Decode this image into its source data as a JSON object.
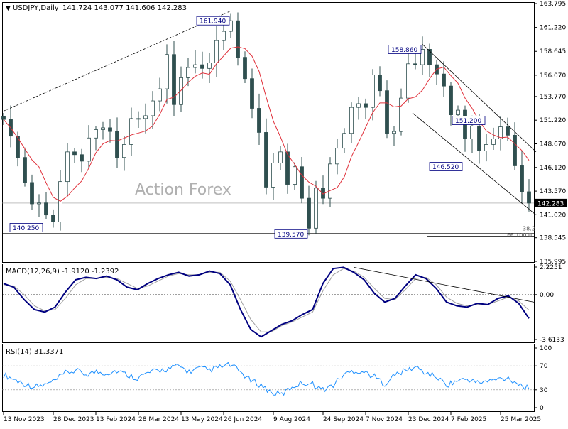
{
  "header": {
    "symbol_timeframe": "USDJPY,Daily",
    "ohlc": "141.724 143.077 141.606 142.283"
  },
  "watermark": "Action Forex",
  "colors": {
    "candle": "#2f4f4f",
    "sma": "#e0303a",
    "trendline": "#000000",
    "macd": "#000080",
    "signal": "#a0a0a0",
    "rsi": "#1e90ff",
    "last_price_bg": "#000000",
    "last_price_text": "#ffffff"
  },
  "chart_data": [
    {
      "type": "candlestick",
      "title": "USDJPY,Daily",
      "ylim": [
        135.995,
        163.795
      ],
      "y_ticks": [
        "163.795",
        "161.220",
        "158.645",
        "156.070",
        "153.770",
        "151.220",
        "148.670",
        "146.120",
        "143.570",
        "141.020",
        "138.545",
        "135.995"
      ],
      "last_price": "142.283",
      "x_ticks": [
        "13 Nov 2023",
        "28 Dec 2023",
        "13 Feb 2024",
        "28 Mar 2024",
        "13 May 2024",
        "26 Jun 2024",
        "9 Aug 2024",
        "24 Sep 2024",
        "7 Nov 2024",
        "23 Dec 2024",
        "7 Feb 2025",
        "25 Mar 2025"
      ],
      "series": [
        {
          "name": "Close",
          "points": [
            [
              "13 Nov 2023",
              151.3
            ],
            [
              "20 Nov 2023",
              149.5
            ],
            [
              "27 Nov 2023",
              147.2
            ],
            [
              "4 Dec 2023",
              144.5
            ],
            [
              "11 Dec 2023",
              142.2
            ],
            [
              "18 Dec 2023",
              142.3
            ],
            [
              "25 Dec 2023",
              141.0
            ],
            [
              "28 Dec 2023",
              140.25
            ],
            [
              "8 Jan 2024",
              144.6
            ],
            [
              "15 Jan 2024",
              147.8
            ],
            [
              "22 Jan 2024",
              147.5
            ],
            [
              "29 Jan 2024",
              146.8
            ],
            [
              "5 Feb 2024",
              149.3
            ],
            [
              "13 Feb 2024",
              150.2
            ],
            [
              "20 Feb 2024",
              150.4
            ],
            [
              "27 Feb 2024",
              150.0
            ],
            [
              "5 Mar 2024",
              147.2
            ],
            [
              "12 Mar 2024",
              148.6
            ],
            [
              "19 Mar 2024",
              151.4
            ],
            [
              "28 Mar 2024",
              151.4
            ],
            [
              "5 Apr 2024",
              151.7
            ],
            [
              "12 Apr 2024",
              153.3
            ],
            [
              "19 Apr 2024",
              154.6
            ],
            [
              "26 Apr 2024",
              158.3
            ],
            [
              "3 May 2024",
              152.9
            ],
            [
              "13 May 2024",
              155.8
            ],
            [
              "20 May 2024",
              156.9
            ],
            [
              "27 May 2024",
              157.2
            ],
            [
              "3 Jun 2024",
              156.8
            ],
            [
              "10 Jun 2024",
              157.4
            ],
            [
              "17 Jun 2024",
              159.8
            ],
            [
              "26 Jun 2024",
              160.8
            ],
            [
              "3 Jul 2024",
              161.94
            ],
            [
              "10 Jul 2024",
              158.0
            ],
            [
              "17 Jul 2024",
              155.7
            ],
            [
              "24 Jul 2024",
              152.5
            ],
            [
              "31 Jul 2024",
              149.9
            ],
            [
              "5 Aug 2024",
              144.0
            ],
            [
              "9 Aug 2024",
              146.6
            ],
            [
              "16 Aug 2024",
              147.8
            ],
            [
              "23 Aug 2024",
              144.3
            ],
            [
              "30 Aug 2024",
              146.2
            ],
            [
              "6 Sep 2024",
              142.8
            ],
            [
              "13 Sep 2024",
              139.57
            ],
            [
              "20 Sep 2024",
              143.9
            ],
            [
              "24 Sep 2024",
              142.8
            ],
            [
              "1 Oct 2024",
              146.5
            ],
            [
              "8 Oct 2024",
              148.2
            ],
            [
              "15 Oct 2024",
              149.8
            ],
            [
              "22 Oct 2024",
              152.6
            ],
            [
              "29 Oct 2024",
              153.0
            ],
            [
              "7 Nov 2024",
              152.6
            ],
            [
              "14 Nov 2024",
              156.1
            ],
            [
              "21 Nov 2024",
              154.4
            ],
            [
              "28 Nov 2024",
              149.8
            ],
            [
              "5 Dec 2024",
              150.0
            ],
            [
              "12 Dec 2024",
              153.6
            ],
            [
              "23 Dec 2024",
              157.3
            ],
            [
              "30 Dec 2024",
              157.2
            ],
            [
              "7 Jan 2025",
              158.86
            ],
            [
              "14 Jan 2025",
              157.2
            ],
            [
              "21 Jan 2025",
              156.2
            ],
            [
              "28 Jan 2025",
              154.9
            ],
            [
              "7 Feb 2025",
              151.8
            ],
            [
              "14 Feb 2025",
              152.3
            ],
            [
              "21 Feb 2025",
              149.2
            ],
            [
              "28 Feb 2025",
              150.6
            ],
            [
              "7 Mar 2025",
              147.9
            ],
            [
              "14 Mar 2025",
              148.6
            ],
            [
              "20 Mar 2025",
              149.2
            ],
            [
              "25 Mar 2025",
              150.5
            ],
            [
              "1 Apr 2025",
              149.6
            ],
            [
              "8 Apr 2025",
              146.3
            ],
            [
              "11 Apr 2025",
              143.5
            ],
            [
              "15 Apr 2025",
              142.283
            ]
          ]
        }
      ],
      "annotations": [
        {
          "text": "161.940",
          "x": "3 Jul 2024",
          "y": 161.94
        },
        {
          "text": "158.860",
          "x": "7 Jan 2025",
          "y": 158.86
        },
        {
          "text": "151.200",
          "x": "14 Mar 2025",
          "y": 151.2
        },
        {
          "text": "146.520",
          "x": "21 Feb 2025",
          "y": 146.52
        },
        {
          "text": "140.250",
          "x": "28 Dec 2023",
          "y": 140.25
        },
        {
          "text": "139.570",
          "x": "13 Sep 2024",
          "y": 139.57
        },
        {
          "text": "38.2",
          "x": "15 Apr 2025",
          "y": 139.4
        },
        {
          "text": "FE 100.0",
          "x": "15 Apr 2025",
          "y": 139.0
        }
      ]
    },
    {
      "type": "line",
      "title": "MACD(12,26,9) -1.9120 -1.2392",
      "label": "MACD(12,26,9)",
      "values_text": "-1.9120 -1.2392",
      "y_ticks": [
        "2.2251",
        "0.00",
        "-3.6133"
      ],
      "ylim": [
        -3.6133,
        2.2251
      ],
      "series": [
        {
          "name": "MACD",
          "values": [
            0.9,
            0.6,
            -0.4,
            -1.2,
            -1.4,
            -1.0,
            0.2,
            1.2,
            1.4,
            1.3,
            1.5,
            1.2,
            0.6,
            0.4,
            0.9,
            1.3,
            1.6,
            1.8,
            1.5,
            1.6,
            1.9,
            1.7,
            0.8,
            -1.2,
            -2.8,
            -3.4,
            -2.9,
            -2.4,
            -2.1,
            -1.6,
            -1.2,
            0.9,
            2.1,
            2.2,
            1.8,
            1.2,
            0.1,
            -0.6,
            -0.3,
            0.7,
            1.6,
            1.3,
            0.5,
            -0.6,
            -0.9,
            -1.0,
            -0.7,
            -0.8,
            -0.3,
            -0.1,
            -0.7,
            -1.912
          ]
        },
        {
          "name": "Signal",
          "values": [
            0.8,
            0.7,
            0.0,
            -0.9,
            -1.3,
            -1.2,
            -0.3,
            0.8,
            1.3,
            1.3,
            1.4,
            1.3,
            0.9,
            0.5,
            0.7,
            1.1,
            1.5,
            1.7,
            1.6,
            1.6,
            1.8,
            1.8,
            1.1,
            -0.4,
            -2.0,
            -3.0,
            -3.0,
            -2.5,
            -2.2,
            -1.8,
            -1.4,
            0.3,
            1.6,
            2.1,
            1.9,
            1.4,
            0.5,
            -0.3,
            -0.4,
            0.4,
            1.3,
            1.4,
            0.8,
            -0.2,
            -0.7,
            -0.9,
            -0.8,
            -0.8,
            -0.5,
            -0.2,
            -0.5,
            -1.2392
          ]
        }
      ]
    },
    {
      "type": "line",
      "title": "RSI(14) 31.3371",
      "label": "RSI(14)",
      "values_text": "31.3371",
      "y_ticks": [
        "100",
        "70",
        "30",
        "0"
      ],
      "ylim": [
        0,
        100
      ],
      "series": [
        {
          "name": "RSI",
          "values": [
            55,
            48,
            40,
            35,
            38,
            45,
            58,
            62,
            56,
            60,
            58,
            62,
            55,
            50,
            58,
            62,
            65,
            70,
            60,
            66,
            63,
            68,
            72,
            60,
            45,
            38,
            25,
            22,
            35,
            42,
            40,
            30,
            38,
            55,
            62,
            60,
            52,
            40,
            55,
            62,
            68,
            58,
            52,
            38,
            45,
            48,
            42,
            44,
            48,
            50,
            40,
            31.3371
          ]
        }
      ]
    }
  ]
}
